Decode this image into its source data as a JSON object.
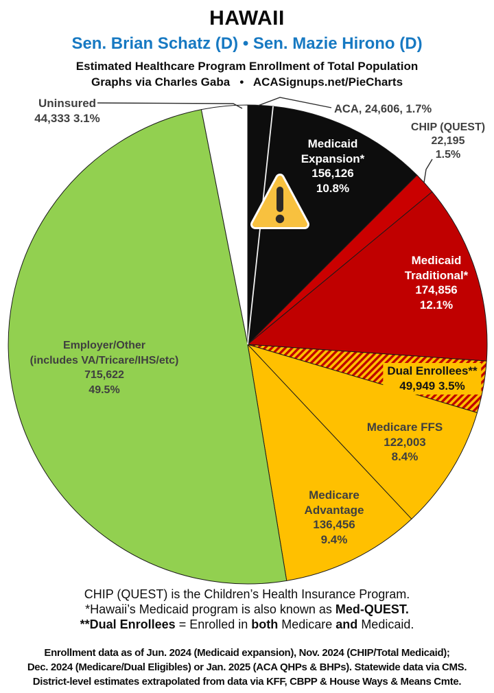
{
  "header": {
    "title": "HAWAII",
    "senators": "Sen. Brian Schatz (D) • Sen. Mazie Hirono (D)",
    "subtitle": "Estimated Healthcare Program Enrollment of Total Population",
    "credit": "Graphs via Charles Gaba   •   ACASignups.net/PieCharts"
  },
  "chart_data": {
    "type": "pie",
    "title": "Estimated Healthcare Program Enrollment of Total Population",
    "rotation": "clockwise-from-12-oclock",
    "total_pct": 100.0,
    "slices": [
      {
        "id": "aca",
        "label": "ACA",
        "value": 24606,
        "pct": 1.7,
        "color": "#0d0d0d",
        "hatch": false
      },
      {
        "id": "medicaid-expansion",
        "label": "Medicaid Expansion*",
        "value": 156126,
        "pct": 10.8,
        "color": "#0d0d0d",
        "hatch": false
      },
      {
        "id": "chip-quest",
        "label": "CHIP (QUEST)",
        "value": 22195,
        "pct": 1.5,
        "color": "#ca0000",
        "hatch": false
      },
      {
        "id": "medicaid-traditional",
        "label": "Medicaid Traditional*",
        "value": 174856,
        "pct": 12.1,
        "color": "#c00000",
        "hatch": false
      },
      {
        "id": "dual-enrollees",
        "label": "Dual Enrollees**",
        "value": 49949,
        "pct": 3.5,
        "color": "#c00000",
        "hatch": true,
        "hatch_colors": [
          "#c00000",
          "#ffc000"
        ]
      },
      {
        "id": "medicare-ffs",
        "label": "Medicare FFS",
        "value": 122003,
        "pct": 8.4,
        "color": "#ffc000",
        "hatch": false
      },
      {
        "id": "medicare-advantage",
        "label": "Medicare Advantage",
        "value": 136456,
        "pct": 9.4,
        "color": "#ffc000",
        "hatch": false
      },
      {
        "id": "employer-other",
        "label": "Employer/Other (includes VA/Tricare/IHS/etc)",
        "value": 715622,
        "pct": 49.5,
        "color": "#92d050",
        "hatch": false
      },
      {
        "id": "uninsured",
        "label": "Uninsured",
        "value": 44333,
        "pct": 3.1,
        "color": "#ffffff",
        "hatch": false
      }
    ]
  },
  "slice_labels": {
    "uninsured": {
      "lines": [
        "Uninsured",
        "44,333 3.1%"
      ]
    },
    "aca": {
      "text": "ACA, 24,606, 1.7%"
    },
    "chip": {
      "lines": [
        "CHIP (QUEST)",
        "22,195",
        "1.5%"
      ]
    },
    "medicaid_expansion": {
      "lines": [
        "Medicaid",
        "Expansion*",
        "156,126",
        "10.8%"
      ]
    },
    "medicaid_traditional": {
      "lines": [
        "Medicaid",
        "Traditional*",
        "174,856",
        "12.1%"
      ]
    },
    "dual": {
      "lines": [
        "Dual Enrollees**",
        "49,949 3.5%"
      ]
    },
    "medicare_ffs": {
      "lines": [
        "Medicare FFS",
        "122,003",
        "8.4%"
      ]
    },
    "medicare_advantage": {
      "lines": [
        "Medicare",
        "Advantage",
        "136,456",
        "9.4%"
      ]
    },
    "employer": {
      "lines": [
        "Employer/Other",
        "(includes VA/Tricare/IHS/etc)",
        "715,622",
        "49.5%"
      ]
    }
  },
  "icons": {
    "warning": "warning-triangle"
  },
  "footnotes": {
    "line1": "CHIP (QUEST) is the Children’s Health Insurance Program.",
    "line2_pre": "*Hawaii’s Medicaid program is also known as ",
    "line2_bold": "Med-QUEST.",
    "line3_bold1": "**Dual Enrollees",
    "line3_mid1": " = Enrolled in ",
    "line3_bold2": "both",
    "line3_mid2": " Medicare ",
    "line3_bold3": "and",
    "line3_end": " Medicaid."
  },
  "source": {
    "line1": "Enrollment data as of Jun. 2024 (Medicaid expansion), Nov. 2024 (CHIP/Total Medicaid);",
    "line2": "Dec. 2024 (Medicare/Dual Eligibles) or Jan. 2025 (ACA QHPs & BHPs). Statewide data via CMS.",
    "line3": "District-level estimates extrapolated from data via KFF, CBPP & House Ways & Means Cmte."
  },
  "colors": {
    "senator_blue": "#1779c2",
    "black_slice": "#0d0d0d",
    "red_slice": "#c00000",
    "gold_slice": "#ffc000",
    "green_slice": "#92d050",
    "label_gray": "#3f3f3f",
    "warning_gold": "#f8c13f"
  }
}
